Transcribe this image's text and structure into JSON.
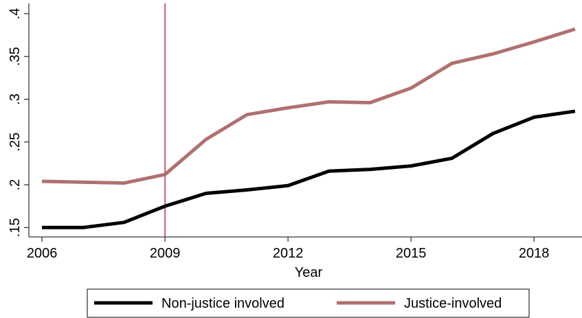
{
  "chart_data": {
    "type": "line",
    "x": [
      2006,
      2007,
      2008,
      2009,
      2010,
      2011,
      2012,
      2013,
      2014,
      2015,
      2016,
      2017,
      2018,
      2019
    ],
    "series": [
      {
        "name": "Non-justice involved",
        "color": "#000000",
        "values": [
          0.15,
          0.15,
          0.156,
          0.175,
          0.19,
          0.194,
          0.199,
          0.216,
          0.218,
          0.222,
          0.231,
          0.26,
          0.279,
          0.286
        ]
      },
      {
        "name": "Justice-involved",
        "color": "#b07070",
        "values": [
          0.204,
          0.203,
          0.202,
          0.212,
          0.253,
          0.282,
          0.29,
          0.297,
          0.296,
          0.313,
          0.342,
          0.353,
          0.367,
          0.382
        ]
      }
    ],
    "xlabel": "Year",
    "xlim": [
      2005.68,
      2019.17
    ],
    "xticks": [
      2006,
      2009,
      2012,
      2015,
      2018
    ],
    "ylim": [
      0.139,
      0.412
    ],
    "yticks": [
      {
        "value": 0.15,
        "label": ".15"
      },
      {
        "value": 0.2,
        "label": ".2"
      },
      {
        "value": 0.25,
        "label": ".25"
      },
      {
        "value": 0.3,
        "label": ".3"
      },
      {
        "value": 0.35,
        "label": ".35"
      },
      {
        "value": 0.4,
        "label": ".4"
      }
    ],
    "vline": 2009,
    "vline_color": "#b0305a",
    "grid": false,
    "legend": "bottom"
  }
}
